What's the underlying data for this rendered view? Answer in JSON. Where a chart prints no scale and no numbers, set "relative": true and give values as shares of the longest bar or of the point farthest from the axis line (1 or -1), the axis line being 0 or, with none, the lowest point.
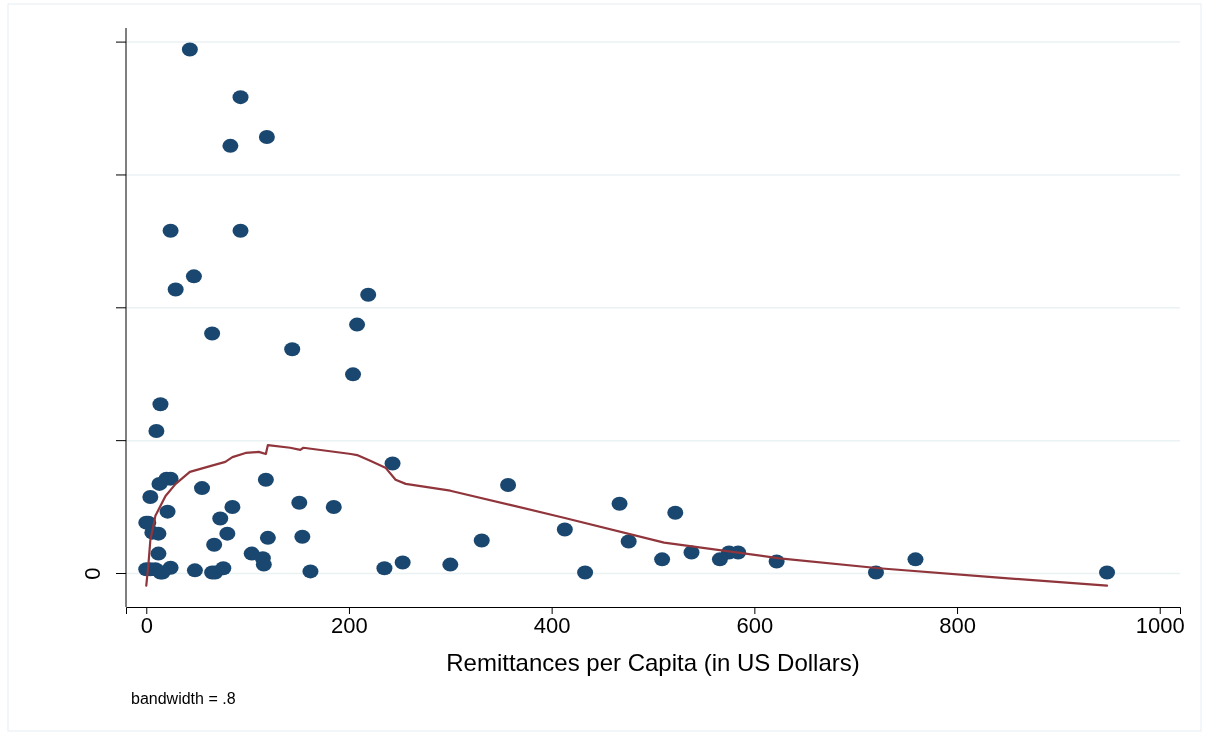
{
  "chart_data": {
    "type": "scatter",
    "relative": true,
    "xlabel": "Remittances per Capita (in US Dollars)",
    "annotations": [
      "0",
      "bandwidth = .8"
    ],
    "xlim": [
      -20,
      1020
    ],
    "xticks": [
      0,
      200,
      400,
      600,
      800,
      1000
    ],
    "grid": "y",
    "series": [
      {
        "marker": "circle",
        "color": "#1a476f",
        "x": [
          43,
          93,
          83,
          119,
          24,
          93,
          29,
          47,
          219,
          208,
          65,
          144,
          204,
          14,
          10,
          243,
          20,
          24,
          13,
          118,
          55,
          4,
          357,
          151,
          185,
          85,
          21,
          467,
          522,
          0,
          2,
          73,
          6,
          12,
          80,
          120,
          154,
          413,
          331,
          476,
          67,
          12,
          104,
          575,
          584,
          538,
          509,
          566,
          622,
          759,
          300,
          253,
          115,
          116,
          0,
          4,
          9,
          14,
          24,
          48,
          65,
          68,
          76,
          162,
          235,
          433,
          720,
          948,
          16
        ],
        "values": [
          1.0,
          0.909,
          0.816,
          0.833,
          0.654,
          0.654,
          0.542,
          0.567,
          0.532,
          0.475,
          0.458,
          0.428,
          0.38,
          0.323,
          0.272,
          0.21,
          0.181,
          0.181,
          0.171,
          0.179,
          0.163,
          0.146,
          0.169,
          0.135,
          0.127,
          0.127,
          0.118,
          0.133,
          0.116,
          0.097,
          0.097,
          0.105,
          0.078,
          0.076,
          0.076,
          0.068,
          0.07,
          0.084,
          0.063,
          0.061,
          0.055,
          0.038,
          0.038,
          0.04,
          0.04,
          0.04,
          0.027,
          0.027,
          0.023,
          0.027,
          0.017,
          0.021,
          0.029,
          0.017,
          0.008,
          0.008,
          0.008,
          0.002,
          0.011,
          0.006,
          0.002,
          0.002,
          0.01,
          0.004,
          0.01,
          0.002,
          0.002,
          0.002,
          0.002
        ]
      },
      {
        "type": "line",
        "marker": "none",
        "color": "#90353b",
        "x": [
          0,
          2,
          4,
          9,
          19,
          29,
          43,
          63,
          78,
          85,
          98,
          111,
          118,
          120,
          142,
          152,
          155,
          202,
          208,
          221,
          236,
          246,
          256,
          300,
          359,
          413,
          511,
          625,
          723,
          841,
          948
        ],
        "values": [
          -0.023,
          0.015,
          0.063,
          0.11,
          0.148,
          0.171,
          0.194,
          0.205,
          0.213,
          0.222,
          0.23,
          0.232,
          0.228,
          0.245,
          0.24,
          0.236,
          0.24,
          0.228,
          0.226,
          0.215,
          0.202,
          0.179,
          0.171,
          0.158,
          0.131,
          0.106,
          0.059,
          0.029,
          0.01,
          -0.008,
          -0.023
        ]
      }
    ]
  }
}
